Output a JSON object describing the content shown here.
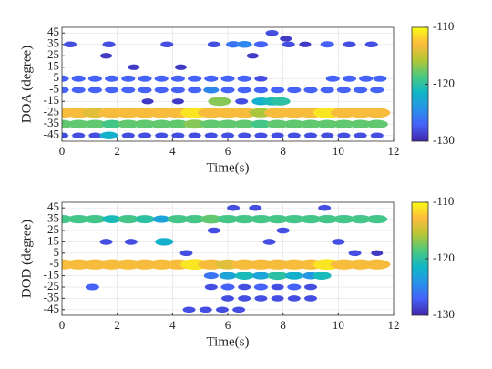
{
  "chart_data": [
    {
      "type": "scatter",
      "xlabel": "Time(s)",
      "ylabel": "DOA (degree)",
      "xlim": [
        0,
        12
      ],
      "ylim": [
        -50,
        50
      ],
      "xticks": [
        0,
        2,
        4,
        6,
        8,
        10,
        12
      ],
      "yticks": [
        45,
        35,
        25,
        15,
        5,
        -5,
        -15,
        -25,
        -35,
        -45
      ],
      "grid": true,
      "clim": [
        -130,
        -110
      ],
      "cticks": [
        -110,
        -120,
        -130
      ],
      "colormap": [
        "#3e26a8",
        "#4760f9",
        "#2693e8",
        "#0fb7c5",
        "#4dc97e",
        "#b5c635",
        "#fcbb3d",
        "#f9fb14"
      ],
      "points": [
        {
          "x": 0.0,
          "y": -25,
          "value": -113
        },
        {
          "x": 0.6,
          "y": -25,
          "value": -113
        },
        {
          "x": 1.2,
          "y": -25,
          "value": -114
        },
        {
          "x": 1.8,
          "y": -25,
          "value": -113
        },
        {
          "x": 2.4,
          "y": -25,
          "value": -113
        },
        {
          "x": 3.0,
          "y": -25,
          "value": -113
        },
        {
          "x": 3.6,
          "y": -25,
          "value": -113
        },
        {
          "x": 4.2,
          "y": -25,
          "value": -113
        },
        {
          "x": 4.8,
          "y": -25,
          "value": -111
        },
        {
          "x": 5.4,
          "y": -25,
          "value": -113
        },
        {
          "x": 6.0,
          "y": -25,
          "value": -113
        },
        {
          "x": 6.6,
          "y": -25,
          "value": -113
        },
        {
          "x": 7.2,
          "y": -25,
          "value": -116
        },
        {
          "x": 7.8,
          "y": -25,
          "value": -113
        },
        {
          "x": 8.4,
          "y": -25,
          "value": -113
        },
        {
          "x": 9.0,
          "y": -25,
          "value": -113
        },
        {
          "x": 9.6,
          "y": -25,
          "value": -111
        },
        {
          "x": 10.2,
          "y": -25,
          "value": -113
        },
        {
          "x": 10.8,
          "y": -25,
          "value": -113
        },
        {
          "x": 11.4,
          "y": -25,
          "value": -113
        },
        {
          "x": 0.0,
          "y": -35,
          "value": -118
        },
        {
          "x": 0.6,
          "y": -35,
          "value": -118
        },
        {
          "x": 1.2,
          "y": -35,
          "value": -118
        },
        {
          "x": 1.8,
          "y": -35,
          "value": -119
        },
        {
          "x": 2.4,
          "y": -35,
          "value": -118
        },
        {
          "x": 3.0,
          "y": -35,
          "value": -118
        },
        {
          "x": 3.6,
          "y": -35,
          "value": -118
        },
        {
          "x": 4.2,
          "y": -35,
          "value": -118
        },
        {
          "x": 4.8,
          "y": -35,
          "value": -117
        },
        {
          "x": 5.4,
          "y": -35,
          "value": -118
        },
        {
          "x": 6.0,
          "y": -35,
          "value": -118
        },
        {
          "x": 6.6,
          "y": -35,
          "value": -118
        },
        {
          "x": 7.2,
          "y": -35,
          "value": -119
        },
        {
          "x": 7.8,
          "y": -35,
          "value": -118
        },
        {
          "x": 8.4,
          "y": -35,
          "value": -118
        },
        {
          "x": 9.0,
          "y": -35,
          "value": -118
        },
        {
          "x": 9.6,
          "y": -35,
          "value": -118
        },
        {
          "x": 10.2,
          "y": -35,
          "value": -118
        },
        {
          "x": 10.8,
          "y": -35,
          "value": -118
        },
        {
          "x": 11.4,
          "y": -35,
          "value": -118
        },
        {
          "x": 0.0,
          "y": -45,
          "value": -128
        },
        {
          "x": 0.6,
          "y": -45,
          "value": -128
        },
        {
          "x": 1.2,
          "y": -45,
          "value": -128
        },
        {
          "x": 1.7,
          "y": -45,
          "value": -122
        },
        {
          "x": 2.4,
          "y": -45,
          "value": -128
        },
        {
          "x": 3.0,
          "y": -45,
          "value": -128
        },
        {
          "x": 3.6,
          "y": -45,
          "value": -128
        },
        {
          "x": 4.2,
          "y": -45,
          "value": -128
        },
        {
          "x": 4.8,
          "y": -45,
          "value": -128
        },
        {
          "x": 5.4,
          "y": -45,
          "value": -128
        },
        {
          "x": 6.0,
          "y": -45,
          "value": -128
        },
        {
          "x": 6.6,
          "y": -45,
          "value": -128
        },
        {
          "x": 7.2,
          "y": -45,
          "value": -128
        },
        {
          "x": 7.8,
          "y": -45,
          "value": -128
        },
        {
          "x": 8.4,
          "y": -45,
          "value": -128
        },
        {
          "x": 9.0,
          "y": -45,
          "value": -128
        },
        {
          "x": 9.6,
          "y": -45,
          "value": -128
        },
        {
          "x": 10.2,
          "y": -45,
          "value": -128
        },
        {
          "x": 10.8,
          "y": -45,
          "value": -128
        },
        {
          "x": 11.4,
          "y": -45,
          "value": -128
        },
        {
          "x": 0.0,
          "y": 5,
          "value": -127
        },
        {
          "x": 0.6,
          "y": 5,
          "value": -127
        },
        {
          "x": 1.2,
          "y": 5,
          "value": -127
        },
        {
          "x": 1.8,
          "y": 5,
          "value": -127
        },
        {
          "x": 2.4,
          "y": 5,
          "value": -127
        },
        {
          "x": 3.0,
          "y": 5,
          "value": -127
        },
        {
          "x": 3.6,
          "y": 5,
          "value": -127
        },
        {
          "x": 4.2,
          "y": 5,
          "value": -127
        },
        {
          "x": 4.8,
          "y": 5,
          "value": -127
        },
        {
          "x": 5.4,
          "y": 5,
          "value": -127
        },
        {
          "x": 6.0,
          "y": 5,
          "value": -127
        },
        {
          "x": 6.6,
          "y": 5,
          "value": -127
        },
        {
          "x": 7.2,
          "y": 5,
          "value": -128
        },
        {
          "x": 9.8,
          "y": 5,
          "value": -127
        },
        {
          "x": 10.4,
          "y": 5,
          "value": -127
        },
        {
          "x": 11.0,
          "y": 5,
          "value": -127
        },
        {
          "x": 11.5,
          "y": 5,
          "value": -127
        },
        {
          "x": 0.0,
          "y": -5,
          "value": -127
        },
        {
          "x": 0.6,
          "y": -5,
          "value": -127
        },
        {
          "x": 1.2,
          "y": -5,
          "value": -127
        },
        {
          "x": 1.8,
          "y": -5,
          "value": -127
        },
        {
          "x": 2.4,
          "y": -5,
          "value": -127
        },
        {
          "x": 3.0,
          "y": -5,
          "value": -127
        },
        {
          "x": 3.6,
          "y": -5,
          "value": -127
        },
        {
          "x": 4.2,
          "y": -5,
          "value": -127
        },
        {
          "x": 4.8,
          "y": -5,
          "value": -127
        },
        {
          "x": 5.4,
          "y": -5,
          "value": -125
        },
        {
          "x": 6.0,
          "y": -5,
          "value": -127
        },
        {
          "x": 6.6,
          "y": -5,
          "value": -127
        },
        {
          "x": 7.2,
          "y": -5,
          "value": -127
        },
        {
          "x": 7.8,
          "y": -5,
          "value": -127
        },
        {
          "x": 8.4,
          "y": -5,
          "value": -127
        },
        {
          "x": 9.0,
          "y": -5,
          "value": -127
        },
        {
          "x": 9.6,
          "y": -5,
          "value": -127
        },
        {
          "x": 10.2,
          "y": -5,
          "value": -127
        },
        {
          "x": 10.8,
          "y": -5,
          "value": -127
        },
        {
          "x": 11.4,
          "y": -5,
          "value": -127
        },
        {
          "x": 0.3,
          "y": 35,
          "value": -128
        },
        {
          "x": 1.7,
          "y": 35,
          "value": -128
        },
        {
          "x": 3.8,
          "y": 35,
          "value": -128
        },
        {
          "x": 5.5,
          "y": 35,
          "value": -128
        },
        {
          "x": 6.2,
          "y": 35,
          "value": -126
        },
        {
          "x": 6.6,
          "y": 35,
          "value": -125
        },
        {
          "x": 7.2,
          "y": 35,
          "value": -127
        },
        {
          "x": 8.2,
          "y": 35,
          "value": -128
        },
        {
          "x": 8.8,
          "y": 35,
          "value": -129
        },
        {
          "x": 9.6,
          "y": 35,
          "value": -127
        },
        {
          "x": 10.4,
          "y": 35,
          "value": -128
        },
        {
          "x": 11.2,
          "y": 35,
          "value": -128
        },
        {
          "x": 7.6,
          "y": 45,
          "value": -128
        },
        {
          "x": 8.1,
          "y": 40,
          "value": -129
        },
        {
          "x": 5.7,
          "y": -15,
          "value": -117
        },
        {
          "x": 7.2,
          "y": -15,
          "value": -122
        },
        {
          "x": 7.6,
          "y": -15,
          "value": -121
        },
        {
          "x": 7.9,
          "y": -15,
          "value": -120
        },
        {
          "x": 6.5,
          "y": -15,
          "value": -128
        },
        {
          "x": 3.1,
          "y": -15,
          "value": -129
        },
        {
          "x": 4.2,
          "y": -15,
          "value": -129
        },
        {
          "x": 2.6,
          "y": 15,
          "value": -129
        },
        {
          "x": 4.3,
          "y": 15,
          "value": -129
        },
        {
          "x": 6.9,
          "y": 25,
          "value": -129
        },
        {
          "x": 1.6,
          "y": 25,
          "value": -129
        }
      ]
    },
    {
      "type": "scatter",
      "xlabel": "Time(s)",
      "ylabel": "DOD (degree)",
      "xlim": [
        0,
        12
      ],
      "ylim": [
        -50,
        50
      ],
      "xticks": [
        0,
        2,
        4,
        6,
        8,
        10,
        12
      ],
      "yticks": [
        45,
        35,
        25,
        15,
        5,
        -5,
        -15,
        -25,
        -35,
        -45
      ],
      "grid": true,
      "clim": [
        -130,
        -110
      ],
      "cticks": [
        -110,
        -120,
        -130
      ],
      "colormap": [
        "#3e26a8",
        "#4760f9",
        "#2693e8",
        "#0fb7c5",
        "#4dc97e",
        "#b5c635",
        "#fcbb3d",
        "#f9fb14"
      ],
      "points": [
        {
          "x": 0.0,
          "y": 35,
          "value": -119
        },
        {
          "x": 0.6,
          "y": 35,
          "value": -119
        },
        {
          "x": 1.2,
          "y": 35,
          "value": -119
        },
        {
          "x": 1.8,
          "y": 35,
          "value": -121
        },
        {
          "x": 2.4,
          "y": 35,
          "value": -119
        },
        {
          "x": 3.0,
          "y": 35,
          "value": -120
        },
        {
          "x": 3.6,
          "y": 35,
          "value": -123
        },
        {
          "x": 4.2,
          "y": 35,
          "value": -119
        },
        {
          "x": 4.8,
          "y": 35,
          "value": -119
        },
        {
          "x": 5.4,
          "y": 35,
          "value": -118
        },
        {
          "x": 6.0,
          "y": 35,
          "value": -119
        },
        {
          "x": 6.6,
          "y": 35,
          "value": -119
        },
        {
          "x": 7.2,
          "y": 35,
          "value": -119
        },
        {
          "x": 7.8,
          "y": 35,
          "value": -119
        },
        {
          "x": 8.4,
          "y": 35,
          "value": -119
        },
        {
          "x": 9.0,
          "y": 35,
          "value": -119
        },
        {
          "x": 9.6,
          "y": 35,
          "value": -119
        },
        {
          "x": 10.2,
          "y": 35,
          "value": -119
        },
        {
          "x": 10.8,
          "y": 35,
          "value": -119
        },
        {
          "x": 11.4,
          "y": 35,
          "value": -119
        },
        {
          "x": 0.0,
          "y": -5,
          "value": -113
        },
        {
          "x": 0.6,
          "y": -5,
          "value": -113
        },
        {
          "x": 1.2,
          "y": -5,
          "value": -113
        },
        {
          "x": 1.8,
          "y": -5,
          "value": -113
        },
        {
          "x": 2.4,
          "y": -5,
          "value": -113
        },
        {
          "x": 3.0,
          "y": -5,
          "value": -113
        },
        {
          "x": 3.6,
          "y": -5,
          "value": -113
        },
        {
          "x": 4.2,
          "y": -5,
          "value": -113
        },
        {
          "x": 4.8,
          "y": -5,
          "value": -111
        },
        {
          "x": 5.4,
          "y": -5,
          "value": -113
        },
        {
          "x": 6.0,
          "y": -5,
          "value": -114
        },
        {
          "x": 6.6,
          "y": -5,
          "value": -113
        },
        {
          "x": 7.2,
          "y": -5,
          "value": -113
        },
        {
          "x": 7.8,
          "y": -5,
          "value": -113
        },
        {
          "x": 8.4,
          "y": -5,
          "value": -113
        },
        {
          "x": 9.0,
          "y": -5,
          "value": -113
        },
        {
          "x": 9.6,
          "y": -5,
          "value": -111
        },
        {
          "x": 10.2,
          "y": -5,
          "value": -113
        },
        {
          "x": 10.8,
          "y": -5,
          "value": -113
        },
        {
          "x": 11.4,
          "y": -5,
          "value": -113
        },
        {
          "x": 5.4,
          "y": -15,
          "value": -126
        },
        {
          "x": 6.0,
          "y": -15,
          "value": -123
        },
        {
          "x": 6.6,
          "y": -15,
          "value": -121
        },
        {
          "x": 7.2,
          "y": -15,
          "value": -123
        },
        {
          "x": 7.8,
          "y": -15,
          "value": -120
        },
        {
          "x": 8.4,
          "y": -15,
          "value": -122
        },
        {
          "x": 9.0,
          "y": -15,
          "value": -124
        },
        {
          "x": 9.4,
          "y": -15,
          "value": -121
        },
        {
          "x": 5.4,
          "y": -25,
          "value": -128
        },
        {
          "x": 6.0,
          "y": -25,
          "value": -127
        },
        {
          "x": 6.6,
          "y": -25,
          "value": -128
        },
        {
          "x": 7.2,
          "y": -25,
          "value": -127
        },
        {
          "x": 7.8,
          "y": -25,
          "value": -128
        },
        {
          "x": 8.4,
          "y": -25,
          "value": -127
        },
        {
          "x": 9.0,
          "y": -25,
          "value": -128
        },
        {
          "x": 6.0,
          "y": -35,
          "value": -128
        },
        {
          "x": 6.6,
          "y": -35,
          "value": -128
        },
        {
          "x": 7.2,
          "y": -35,
          "value": -128
        },
        {
          "x": 7.8,
          "y": -35,
          "value": -128
        },
        {
          "x": 8.4,
          "y": -35,
          "value": -128
        },
        {
          "x": 9.0,
          "y": -35,
          "value": -128
        },
        {
          "x": 4.6,
          "y": -45,
          "value": -128
        },
        {
          "x": 5.2,
          "y": -45,
          "value": -128
        },
        {
          "x": 5.8,
          "y": -45,
          "value": -128
        },
        {
          "x": 6.4,
          "y": -45,
          "value": -128
        },
        {
          "x": 1.1,
          "y": -25,
          "value": -127
        },
        {
          "x": 3.7,
          "y": 15,
          "value": -122
        },
        {
          "x": 1.6,
          "y": 15,
          "value": -128
        },
        {
          "x": 2.5,
          "y": 15,
          "value": -128
        },
        {
          "x": 10.6,
          "y": 5,
          "value": -128
        },
        {
          "x": 11.4,
          "y": 5,
          "value": -129
        },
        {
          "x": 6.2,
          "y": 45,
          "value": -128
        },
        {
          "x": 7.0,
          "y": 45,
          "value": -128
        },
        {
          "x": 9.5,
          "y": 45,
          "value": -128
        },
        {
          "x": 5.5,
          "y": 25,
          "value": -128
        },
        {
          "x": 4.5,
          "y": 5,
          "value": -128
        },
        {
          "x": 8.0,
          "y": 25,
          "value": -128
        },
        {
          "x": 7.5,
          "y": 15,
          "value": -128
        },
        {
          "x": 10.0,
          "y": 15,
          "value": -128
        }
      ]
    }
  ]
}
